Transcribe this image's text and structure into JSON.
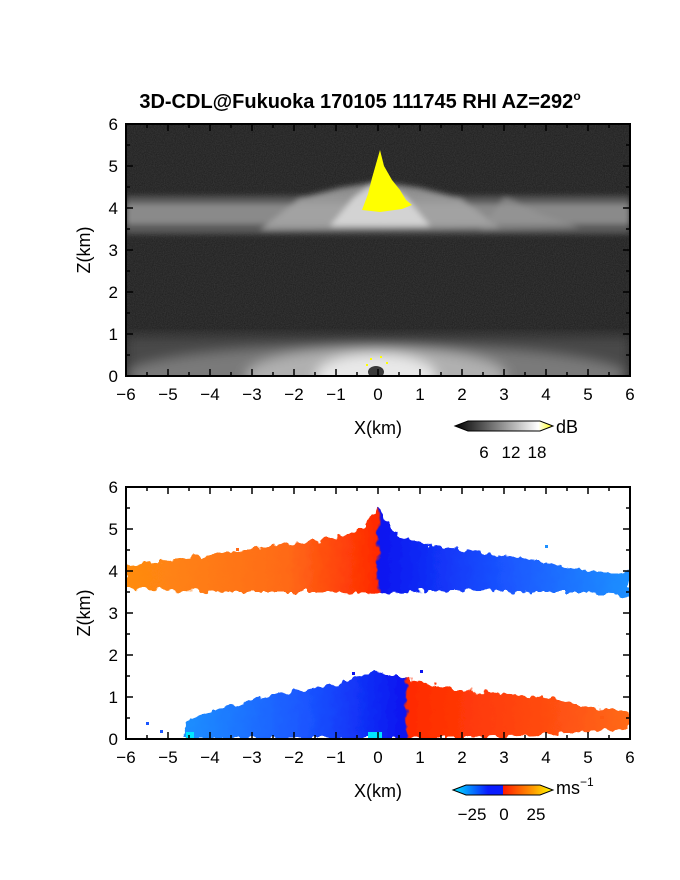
{
  "title": "3D-CDL@Fukuoka 170105 111745 RHI AZ=292",
  "title_degree_mark": "o",
  "chart_data": [
    {
      "type": "heatmap",
      "name": "reflectivity",
      "xlabel": "X(km)",
      "ylabel": "Z(km)",
      "xlim": [
        -6,
        6
      ],
      "ylim": [
        0,
        6
      ],
      "x_ticks": [
        -6,
        -5,
        -4,
        -3,
        -2,
        -1,
        0,
        1,
        2,
        3,
        4,
        5,
        6
      ],
      "y_ticks": [
        0,
        1,
        2,
        3,
        4,
        5,
        6
      ],
      "colorbar": {
        "unit": "dB",
        "tick_labels": [
          "6",
          "12",
          "18"
        ],
        "range": [
          0,
          24
        ],
        "colors": [
          "#000000",
          "#ffffff",
          "#ffff00"
        ]
      },
      "features": [
        {
          "label": "upper echo layer",
          "z_bottom_km": 3.5,
          "z_top_km": 4.3,
          "x_range_km": [
            -6,
            6
          ],
          "level_db": 10
        },
        {
          "label": "strong core",
          "x_center_km": 0.05,
          "z_center_km": 4.4,
          "z_peak_km": 5.4,
          "level_db": 20
        },
        {
          "label": "lower echo layer",
          "z_bottom_km": 0.0,
          "z_top_km": 1.2,
          "x_range_km": [
            -6,
            6
          ],
          "level_db": 9
        }
      ],
      "grid": false
    },
    {
      "type": "heatmap",
      "name": "radial_velocity",
      "xlabel": "X(km)",
      "ylabel": "Z(km)",
      "xlim": [
        -6,
        6
      ],
      "ylim": [
        0,
        6
      ],
      "x_ticks": [
        -6,
        -5,
        -4,
        -3,
        -2,
        -1,
        0,
        1,
        2,
        3,
        4,
        5,
        6
      ],
      "y_ticks": [
        0,
        1,
        2,
        3,
        4,
        5,
        6
      ],
      "colorbar": {
        "unit": "ms",
        "unit_exponent": "−1",
        "tick_labels": [
          "−25",
          "0",
          "25"
        ],
        "range": [
          -30,
          30
        ],
        "colors": [
          "#00e5ff",
          "#0a1cff",
          "#ff1a00",
          "#ff9a00",
          "#ffff00"
        ]
      },
      "features": [
        {
          "label": "upper layer",
          "z_bottom_km": 3.45,
          "z_top_km": 4.4,
          "left_velocity_ms": 18,
          "right_velocity_ms": -18,
          "x_range_km": [
            -6,
            6
          ],
          "peak_z_km": 5.4,
          "peak_x_km": 0.1
        },
        {
          "label": "lower layer",
          "z_bottom_km": 0.0,
          "z_top_km": 1.2,
          "left_velocity_ms": -15,
          "right_velocity_ms": 15,
          "x_range_km": [
            -5.5,
            6
          ]
        }
      ],
      "grid": false
    }
  ]
}
